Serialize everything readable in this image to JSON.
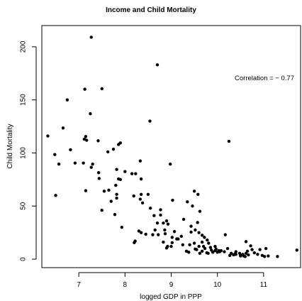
{
  "chart_data": {
    "type": "scatter",
    "title": "Income and Child Mortality",
    "xlabel": "logged GDP in PPP",
    "ylabel": "Child Mortality",
    "xlim": [
      6.2,
      11.8
    ],
    "ylim": [
      -8,
      220
    ],
    "xticks": [
      7,
      8,
      9,
      10,
      11
    ],
    "yticks": [
      0,
      50,
      100,
      150,
      200
    ],
    "grid": false,
    "annotation": "Correlation = − 0.77",
    "points": [
      [
        6.33,
        116
      ],
      [
        6.48,
        98.5
      ],
      [
        6.57,
        89.5
      ],
      [
        6.5,
        60
      ],
      [
        6.66,
        123.5
      ],
      [
        6.75,
        150
      ],
      [
        6.82,
        103
      ],
      [
        6.92,
        90.5
      ],
      [
        7.1,
        90.5
      ],
      [
        7.12,
        113
      ],
      [
        7.15,
        115.5
      ],
      [
        7.17,
        112
      ],
      [
        7.13,
        160
      ],
      [
        7.27,
        209
      ],
      [
        7.25,
        137
      ],
      [
        7.15,
        64.5
      ],
      [
        7.27,
        86.5
      ],
      [
        7.3,
        89.5
      ],
      [
        7.42,
        111.5
      ],
      [
        7.43,
        81.5
      ],
      [
        7.44,
        76
      ],
      [
        7.5,
        160.5
      ],
      [
        7.5,
        46
      ],
      [
        7.55,
        64
      ],
      [
        7.63,
        101
      ],
      [
        7.65,
        65
      ],
      [
        7.75,
        103.5
      ],
      [
        7.8,
        69.5
      ],
      [
        7.86,
        108
      ],
      [
        7.9,
        109.5
      ],
      [
        7.86,
        75.5
      ],
      [
        7.9,
        75
      ],
      [
        7.7,
        54.5
      ],
      [
        7.78,
        42
      ],
      [
        7.82,
        61
      ],
      [
        7.82,
        57.5
      ],
      [
        7.93,
        30
      ],
      [
        7.82,
        84.5
      ],
      [
        8.0,
        82.5
      ],
      [
        8.15,
        80.5
      ],
      [
        8.23,
        80.5
      ],
      [
        8.33,
        92.5
      ],
      [
        8.35,
        75.5
      ],
      [
        8.35,
        61
      ],
      [
        8.19,
        59.5
      ],
      [
        8.33,
        56.5
      ],
      [
        8.38,
        53
      ],
      [
        8.5,
        61
      ],
      [
        8.55,
        48
      ],
      [
        8.7,
        183
      ],
      [
        8.54,
        130
      ],
      [
        8.98,
        89.5
      ],
      [
        9.03,
        55.5
      ],
      [
        8.63,
        41
      ],
      [
        8.77,
        46.5
      ],
      [
        8.77,
        41.5
      ],
      [
        8.7,
        34
      ],
      [
        8.65,
        27.5
      ],
      [
        8.83,
        34
      ],
      [
        8.86,
        27.5
      ],
      [
        8.87,
        24
      ],
      [
        8.9,
        36
      ],
      [
        8.93,
        33
      ],
      [
        8.92,
        12
      ],
      [
        9.02,
        15.5
      ],
      [
        9.02,
        20.5
      ],
      [
        9.15,
        19
      ],
      [
        9.27,
        37.5
      ],
      [
        9.35,
        54
      ],
      [
        9.46,
        50
      ],
      [
        9.5,
        64
      ],
      [
        9.58,
        61
      ],
      [
        9.62,
        45
      ],
      [
        9.57,
        34.5
      ],
      [
        9.43,
        31
      ],
      [
        9.43,
        25.5
      ],
      [
        9.52,
        27.5
      ],
      [
        9.6,
        25
      ],
      [
        9.67,
        22.5
      ],
      [
        9.72,
        20.5
      ],
      [
        9.78,
        18
      ],
      [
        9.81,
        15
      ],
      [
        9.85,
        11
      ],
      [
        9.67,
        16
      ],
      [
        9.7,
        12
      ],
      [
        9.6,
        12
      ],
      [
        9.5,
        15
      ],
      [
        9.52,
        9.5
      ],
      [
        9.4,
        13.5
      ],
      [
        9.38,
        6.5
      ],
      [
        9.33,
        7.5
      ],
      [
        9.25,
        13.5
      ],
      [
        9.22,
        21.5
      ],
      [
        9.12,
        19
      ],
      [
        9.07,
        26
      ],
      [
        8.22,
        17
      ],
      [
        8.3,
        26.5
      ],
      [
        8.35,
        25
      ],
      [
        8.2,
        15.5
      ],
      [
        8.45,
        23.5
      ],
      [
        8.6,
        23
      ],
      [
        8.72,
        23
      ],
      [
        8.83,
        16
      ],
      [
        8.9,
        10.5
      ],
      [
        9.0,
        12
      ],
      [
        9.95,
        12
      ],
      [
        9.87,
        8.5
      ],
      [
        9.9,
        6.5
      ],
      [
        9.95,
        8
      ],
      [
        10.03,
        8
      ],
      [
        10.05,
        7
      ],
      [
        9.97,
        9.5
      ],
      [
        9.73,
        10
      ],
      [
        9.77,
        6
      ],
      [
        9.8,
        5.5
      ],
      [
        9.67,
        7.5
      ],
      [
        9.62,
        5.5
      ],
      [
        9.55,
        9
      ],
      [
        10.0,
        6.5
      ],
      [
        10.08,
        8
      ],
      [
        10.15,
        7
      ],
      [
        10.22,
        10
      ],
      [
        10.17,
        23
      ],
      [
        10.25,
        111
      ],
      [
        10.27,
        3.5
      ],
      [
        10.35,
        4
      ],
      [
        10.4,
        7
      ],
      [
        10.4,
        4.5
      ],
      [
        10.48,
        5.5
      ],
      [
        10.5,
        4
      ],
      [
        10.55,
        4.5
      ],
      [
        10.6,
        2.5
      ],
      [
        10.62,
        5.5
      ],
      [
        10.65,
        7.5
      ],
      [
        10.62,
        16.5
      ],
      [
        10.72,
        12.5
      ],
      [
        10.75,
        9
      ],
      [
        10.8,
        6
      ],
      [
        10.87,
        4.5
      ],
      [
        10.92,
        9
      ],
      [
        10.97,
        3.5
      ],
      [
        11.02,
        2.5
      ],
      [
        11.05,
        10
      ],
      [
        11.1,
        3
      ],
      [
        11.3,
        2.5
      ],
      [
        11.72,
        8.5
      ],
      [
        10.5,
        3
      ],
      [
        10.38,
        5
      ],
      [
        10.3,
        5.5
      ],
      [
        10.57,
        3
      ],
      [
        10.67,
        4
      ]
    ]
  }
}
